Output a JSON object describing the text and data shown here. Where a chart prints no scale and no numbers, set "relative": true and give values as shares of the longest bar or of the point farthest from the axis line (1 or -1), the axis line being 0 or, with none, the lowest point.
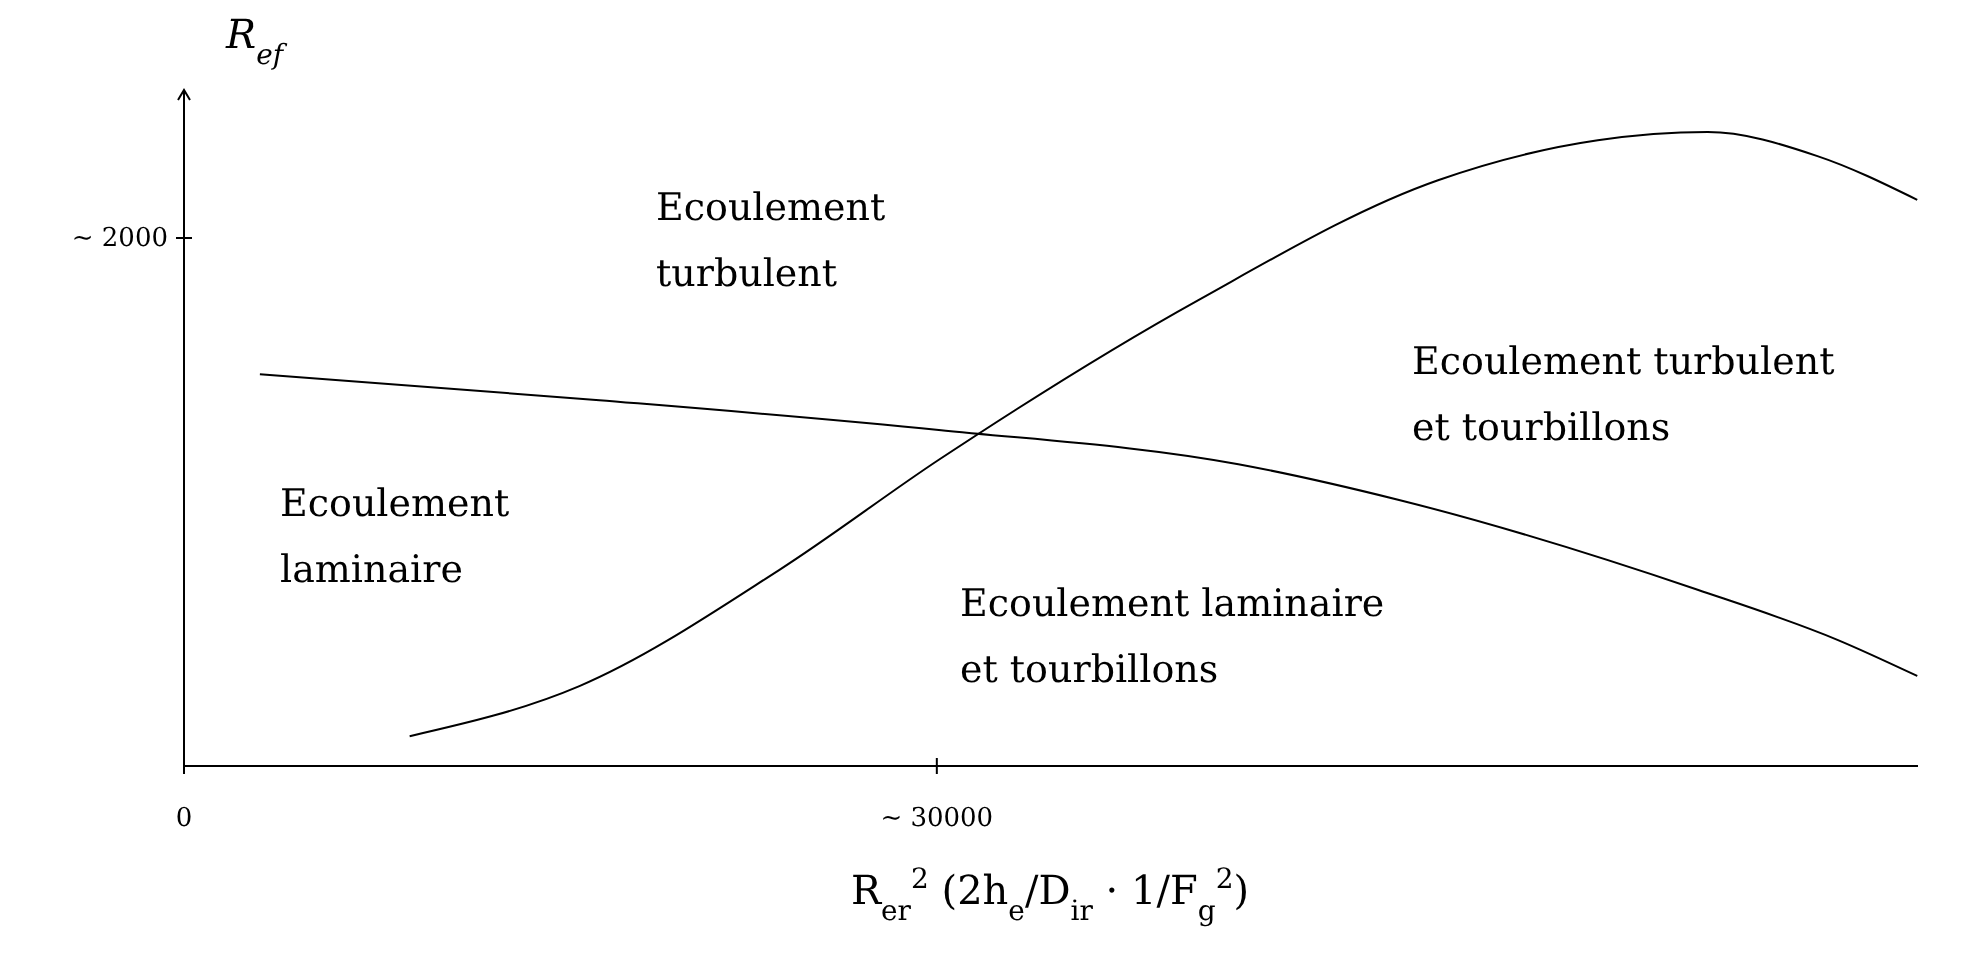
{
  "chart_data": {
    "type": "line",
    "xlabel": "R$_{er}$$^{2}$ (2h$_{e}$/D$_{ir}$ · 1/F$_{g}$$^{2}$)",
    "ylabel": "R$_{ef}$",
    "xlim": [
      0,
      69100
    ],
    "xticks": [
      {
        "value": 0,
        "label": "0"
      },
      {
        "value": 30000,
        "label": "~ 30000"
      }
    ],
    "relative": true,
    "marker": "none",
    "line_style": "solid",
    "series": [
      {
        "color": "#000000",
        "x": [
          3024,
          16552,
          30080,
          42016,
          48380,
          60318,
          65889,
          69070
        ],
        "values": [
          0.618,
          0.577,
          0.53,
          0.476,
          0.42,
          0.278,
          0.199,
          0.142
        ]
      },
      {
        "color": "#000000",
        "x": [
          8992,
          15756,
          23714,
          30080,
          40424,
          49973,
          56340,
          60716,
          65093,
          69070
        ],
        "values": [
          0.047,
          0.126,
          0.309,
          0.483,
          0.735,
          0.924,
          0.987,
          1,
          0.962,
          0.893
        ]
      }
    ],
    "annotations": [
      "~ 2000",
      "Ecoulement\nturbulent",
      "Ecoulement turbulent\net tourbillons",
      "Ecoulement\nlaminaire",
      "Ecoulement laminaire\net tourbillons"
    ]
  }
}
